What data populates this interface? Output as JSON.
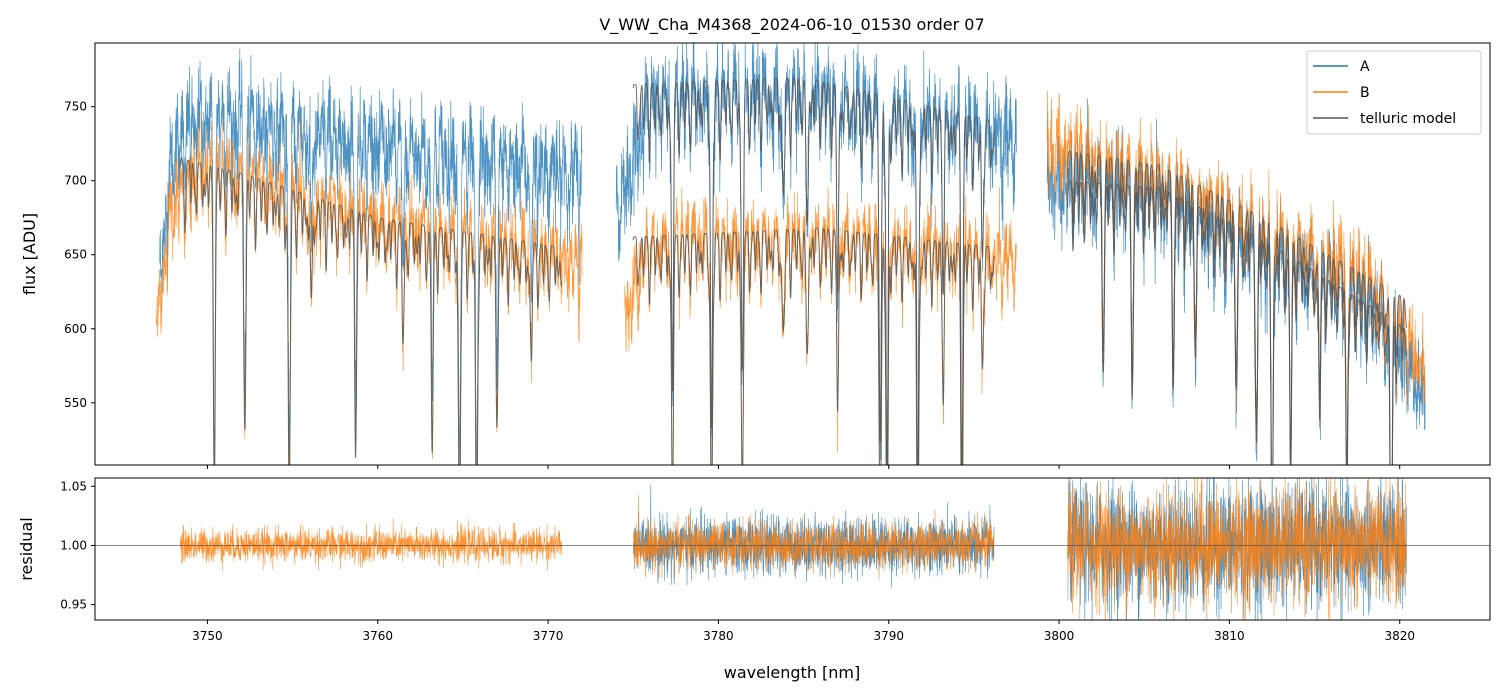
{
  "chart_data": {
    "type": "line",
    "title": "V_WW_Cha_M4368_2024-06-10_01530  order 07",
    "xlabel": "wavelength [nm]",
    "xlim": [
      3743.4,
      3825.3
    ],
    "xticks": [
      3750,
      3760,
      3770,
      3780,
      3790,
      3800,
      3810,
      3820
    ],
    "top_panel": {
      "ylabel": "flux [ADU]",
      "ylim": [
        508,
        793
      ],
      "yticks": [
        550,
        600,
        650,
        700,
        750
      ],
      "legend": {
        "placement": "top-right",
        "entries": [
          "A",
          "B",
          "telluric model"
        ]
      },
      "series": [
        {
          "name": "A",
          "color": "#1f77b4",
          "noise": 14,
          "segments": [
            {
              "range": [
                3747.2,
                3772.0
              ],
              "continuum": [
                [
                  3747.2,
                  650
                ],
                [
                  3748,
                  735
                ],
                [
                  3750,
                  755
                ],
                [
                  3760,
                  735
                ],
                [
                  3772,
                  715
                ]
              ]
            },
            {
              "range": [
                3774.0,
                3797.5
              ],
              "continuum": [
                [
                  3774,
                  690
                ],
                [
                  3776,
                  765
                ],
                [
                  3785,
                  768
                ],
                [
                  3797.5,
                  740
                ]
              ]
            },
            {
              "range": [
                3799.3,
                3821.5
              ],
              "continuum": [
                [
                  3799.3,
                  710
                ],
                [
                  3805,
                  700
                ],
                [
                  3812,
                  660
                ],
                [
                  3818,
                  630
                ],
                [
                  3821.5,
                  560
                ]
              ]
            }
          ]
        },
        {
          "name": "B",
          "color": "#ff7f0e",
          "noise": 11,
          "segments": [
            {
              "range": [
                3747.0,
                3772.0
              ],
              "continuum": [
                [
                  3747,
                  610
                ],
                [
                  3748,
                  700
                ],
                [
                  3750,
                  718
                ],
                [
                  3760,
                  680
                ],
                [
                  3772,
                  655
                ]
              ]
            },
            {
              "range": [
                3774.5,
                3797.5
              ],
              "continuum": [
                [
                  3774.5,
                  620
                ],
                [
                  3776,
                  665
                ],
                [
                  3786,
                  670
                ],
                [
                  3797.5,
                  655
                ]
              ]
            },
            {
              "range": [
                3799.3,
                3821.5
              ],
              "continuum": [
                [
                  3799.3,
                  735
                ],
                [
                  3805,
                  715
                ],
                [
                  3812,
                  675
                ],
                [
                  3818,
                  645
                ],
                [
                  3821.5,
                  580
                ]
              ]
            }
          ]
        }
      ],
      "telluric_model": {
        "name": "telluric model",
        "color": "#555555",
        "segments": [
          {
            "range": [
              3748.4,
              3770.8
            ],
            "continuum": [
              [
                3748.4,
                715
              ],
              [
                3752,
                705
              ],
              [
                3760,
                675
              ],
              [
                3770.8,
                655
              ]
            ]
          },
          {
            "range": [
              3775.0,
              3796.2
            ],
            "continuum": [
              [
                3775,
                765
              ],
              [
                3785,
                770
              ],
              [
                3796.2,
                740
              ]
            ]
          },
          {
            "range": [
              3775.0,
              3796.2
            ],
            "continuum": [
              [
                3775,
                662
              ],
              [
                3786,
                668
              ],
              [
                3796.2,
                655
              ]
            ]
          },
          {
            "range": [
              3800.5,
              3820.4
            ],
            "continuum": [
              [
                3800.5,
                720
              ],
              [
                3806,
                710
              ],
              [
                3812,
                675
              ],
              [
                3820.4,
                620
              ]
            ]
          },
          {
            "range": [
              3800.5,
              3820.4
            ],
            "continuum": [
              [
                3800.5,
                700
              ],
              [
                3806,
                695
              ],
              [
                3812,
                660
              ],
              [
                3820.4,
                600
              ]
            ]
          }
        ],
        "lines": [
          [
            3750.4,
            0.27
          ],
          [
            3752.2,
            0.22
          ],
          [
            3754.8,
            0.3
          ],
          [
            3756.1,
            0.1
          ],
          [
            3758.7,
            0.2
          ],
          [
            3761.5,
            0.1
          ],
          [
            3763.2,
            0.2
          ],
          [
            3764.8,
            0.3
          ],
          [
            3765.8,
            0.3
          ],
          [
            3767.0,
            0.15
          ],
          [
            3769.0,
            0.1
          ],
          [
            3777.3,
            0.25
          ],
          [
            3779.6,
            0.3
          ],
          [
            3781.4,
            0.25
          ],
          [
            3783.8,
            0.1
          ],
          [
            3785.2,
            0.12
          ],
          [
            3787.0,
            0.15
          ],
          [
            3789.5,
            0.3
          ],
          [
            3789.9,
            0.35
          ],
          [
            3791.7,
            0.35
          ],
          [
            3793.2,
            0.12
          ],
          [
            3794.3,
            0.3
          ],
          [
            3795.5,
            0.1
          ],
          [
            3802.6,
            0.15
          ],
          [
            3804.3,
            0.18
          ],
          [
            3806.7,
            0.15
          ],
          [
            3808.0,
            0.12
          ],
          [
            3810.4,
            0.15
          ],
          [
            3811.6,
            0.2
          ],
          [
            3812.5,
            0.3
          ],
          [
            3813.6,
            0.2
          ],
          [
            3815.3,
            0.12
          ],
          [
            3816.9,
            0.2
          ],
          [
            3819.5,
            0.3
          ]
        ]
      }
    },
    "bottom_panel": {
      "ylabel": "residual",
      "ylim": [
        0.937,
        1.057
      ],
      "yticks": [
        0.95,
        1.0,
        1.05
      ],
      "reference_line": 1.0,
      "series": [
        {
          "name": "A",
          "color": "#1f77b4",
          "segments": [
            {
              "range": [
                3775.0,
                3796.2
              ],
              "sd": 0.012
            },
            {
              "range": [
                3800.5,
                3820.4
              ],
              "sd": 0.026
            }
          ]
        },
        {
          "name": "B",
          "color": "#ff7f0e",
          "segments": [
            {
              "range": [
                3748.4,
                3770.8
              ],
              "sd": 0.007
            },
            {
              "range": [
                3775.0,
                3796.2
              ],
              "sd": 0.01
            },
            {
              "range": [
                3800.5,
                3820.4
              ],
              "sd": 0.024
            }
          ]
        }
      ]
    }
  }
}
